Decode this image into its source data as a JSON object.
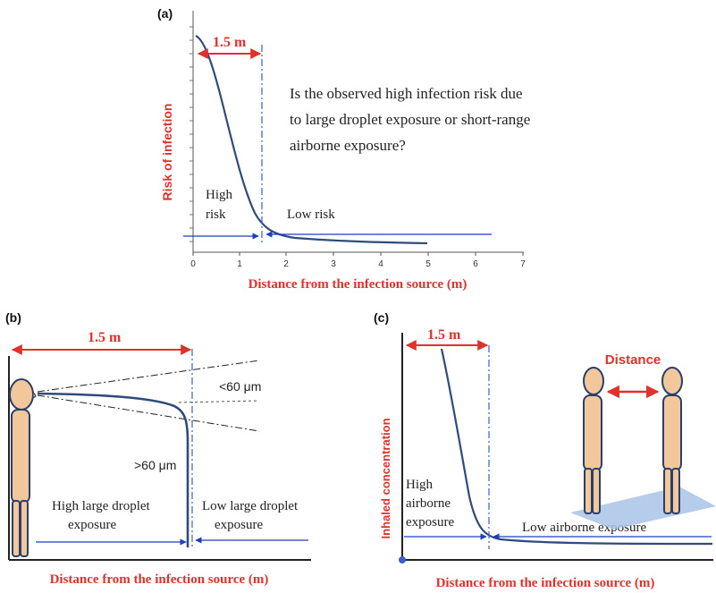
{
  "panel_a": {
    "label": "(a)",
    "distance_marker": "1.5 m",
    "question": [
      "Is the observed high infection risk due",
      "to large droplet exposure or short-range",
      "airborne exposure?"
    ],
    "high_risk": [
      "High",
      "risk"
    ],
    "low_risk": "Low risk",
    "ylabel": "Risk of infection",
    "xlabel": "Distance from the infection source (m)",
    "xticks": [
      "0",
      "1",
      "2",
      "3",
      "4",
      "5",
      "6",
      "7"
    ]
  },
  "panel_b": {
    "label": "(b)",
    "distance_marker": "1.5 m",
    "small_droplet": "<60 μm",
    "large_droplet": ">60 μm",
    "high_exposure": [
      "High large droplet",
      "exposure"
    ],
    "low_exposure": [
      "Low large droplet",
      "exposure"
    ],
    "xlabel": "Distance from the infection source (m)"
  },
  "panel_c": {
    "label": "(c)",
    "distance_marker": "1.5 m",
    "distance_label": "Distance",
    "ylabel": "Inhaled concentration",
    "high_exposure": [
      "High",
      "airborne",
      "exposure"
    ],
    "low_exposure": "Low airborne exposure",
    "xlabel": "Distance from the infection source (m)"
  },
  "colors": {
    "curve": "#2f4b7c",
    "accent_red": "#e0312b",
    "axis_blue": "#3a5fcd",
    "skin": "#f3c79c",
    "outline": "#2b3f6b",
    "floor": "#a9c3e8"
  }
}
